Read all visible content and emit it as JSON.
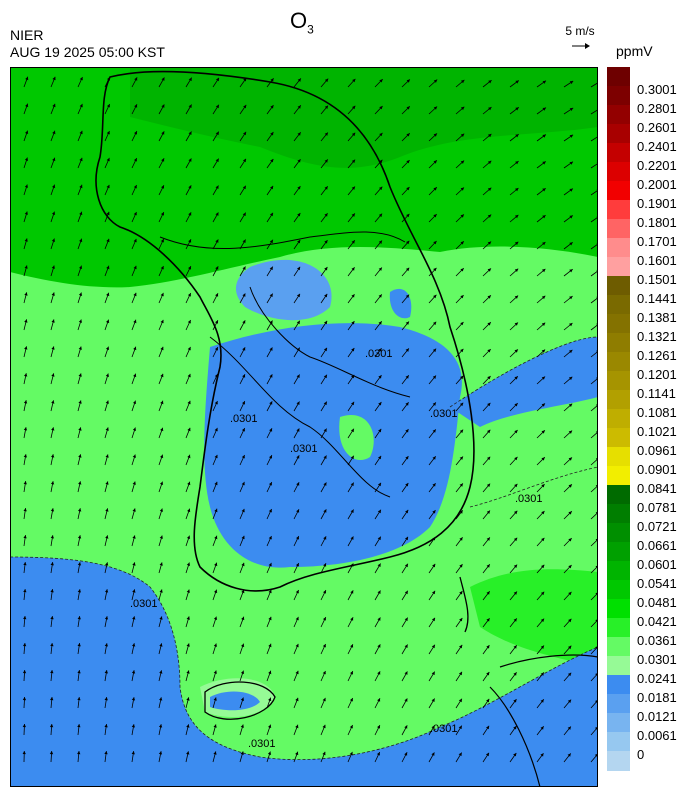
{
  "header": {
    "agency": "NIER",
    "datetime": "AUG 19 2025 05:00 KST",
    "title_main": "O",
    "title_sub": "3",
    "wind_reference": "5 m/s",
    "unit": "ppmV"
  },
  "map": {
    "contour_labels": [
      ".0301",
      ".0301",
      ".0301",
      ".0301",
      ".0301",
      ".0301",
      ".0301",
      ".0301"
    ],
    "prevailing_wind": "south-southwest"
  },
  "legend": {
    "labels": [
      "0.3001",
      "0.2801",
      "0.2601",
      "0.2401",
      "0.2201",
      "0.2001",
      "0.1901",
      "0.1801",
      "0.1701",
      "0.1601",
      "0.1501",
      "0.1441",
      "0.1381",
      "0.1321",
      "0.1261",
      "0.1201",
      "0.1141",
      "0.1081",
      "0.1021",
      "0.0961",
      "0.0901",
      "0.0841",
      "0.0781",
      "0.0721",
      "0.0661",
      "0.0601",
      "0.0541",
      "0.0481",
      "0.0421",
      "0.0361",
      "0.0301",
      "0.0241",
      "0.0181",
      "0.0121",
      "0.0061",
      "0"
    ],
    "colors": [
      "#6e0000",
      "#7d0000",
      "#930000",
      "#a80000",
      "#c40000",
      "#dc0000",
      "#f20000",
      "#ff3c3c",
      "#ff6464",
      "#ff8c8c",
      "#ffa0a0",
      "#6e5c00",
      "#7a6a00",
      "#847200",
      "#8f7d00",
      "#9a8800",
      "#a69400",
      "#b2a000",
      "#bfae00",
      "#ccbb00",
      "#e6df00",
      "#f2ee00",
      "#006b00",
      "#007e00",
      "#008f00",
      "#00a000",
      "#00b400",
      "#00c800",
      "#00e000",
      "#28f028",
      "#64fa64",
      "#96fa96",
      "#3c8cf0",
      "#5aa0f0",
      "#78b4f0",
      "#96c8f0",
      "#b4d6f0"
    ]
  }
}
